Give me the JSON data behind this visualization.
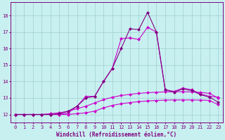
{
  "xlabel": "Windchill (Refroidissement éolien,°C)",
  "bg_color": "#c8f0f0",
  "line_color": "#cc00cc",
  "line_color2": "#800080",
  "xlim": [
    -0.5,
    23.5
  ],
  "ylim": [
    11.5,
    18.8
  ],
  "yticks": [
    12,
    13,
    14,
    15,
    16,
    17,
    18
  ],
  "xticks": [
    0,
    1,
    2,
    3,
    4,
    5,
    6,
    7,
    8,
    9,
    10,
    11,
    12,
    13,
    14,
    15,
    16,
    17,
    18,
    19,
    20,
    21,
    22,
    23
  ],
  "line1_x": [
    0,
    1,
    2,
    3,
    4,
    5,
    6,
    7,
    8,
    9,
    10,
    11,
    12,
    13,
    14,
    15,
    16,
    17,
    18,
    19,
    20,
    21,
    22,
    23
  ],
  "line1_y": [
    12.0,
    12.0,
    12.0,
    12.0,
    12.0,
    12.0,
    12.0,
    12.05,
    12.1,
    12.2,
    12.4,
    12.55,
    12.65,
    12.72,
    12.78,
    12.82,
    12.85,
    12.87,
    12.88,
    12.88,
    12.88,
    12.87,
    12.85,
    12.6
  ],
  "line2_x": [
    0,
    1,
    2,
    3,
    4,
    5,
    6,
    7,
    8,
    9,
    10,
    11,
    12,
    13,
    14,
    15,
    16,
    17,
    18,
    19,
    20,
    21,
    22,
    23
  ],
  "line2_y": [
    12.0,
    12.0,
    12.0,
    12.0,
    12.05,
    12.1,
    12.2,
    12.35,
    12.5,
    12.7,
    12.9,
    13.05,
    13.15,
    13.22,
    13.28,
    13.32,
    13.35,
    13.37,
    13.38,
    13.38,
    13.37,
    13.34,
    13.28,
    13.0
  ],
  "line3_x": [
    0,
    1,
    2,
    3,
    4,
    5,
    6,
    7,
    8,
    9,
    10,
    11,
    12,
    13,
    14,
    15,
    16,
    17,
    18,
    19,
    20,
    21,
    22,
    23
  ],
  "line3_y": [
    12.0,
    12.0,
    12.0,
    12.0,
    12.0,
    12.0,
    12.1,
    12.5,
    13.1,
    13.1,
    14.0,
    14.8,
    16.6,
    16.65,
    16.55,
    17.3,
    17.0,
    13.5,
    13.4,
    13.6,
    13.5,
    13.25,
    13.1,
    13.05
  ],
  "line4_x": [
    0,
    1,
    2,
    3,
    4,
    5,
    6,
    7,
    8,
    9,
    10,
    11,
    12,
    13,
    14,
    15,
    16,
    17,
    18,
    19,
    20,
    21,
    22,
    23
  ],
  "line4_y": [
    12.0,
    12.0,
    12.0,
    12.0,
    12.0,
    12.05,
    12.2,
    12.5,
    13.0,
    13.1,
    14.0,
    14.8,
    16.0,
    17.2,
    17.15,
    18.2,
    17.0,
    13.5,
    13.35,
    13.55,
    13.45,
    13.2,
    13.05,
    12.75
  ],
  "grid_color": "#9ecece",
  "tick_fontsize": 5.0,
  "xlabel_fontsize": 5.5,
  "lw": 0.8,
  "ms": 2.5
}
